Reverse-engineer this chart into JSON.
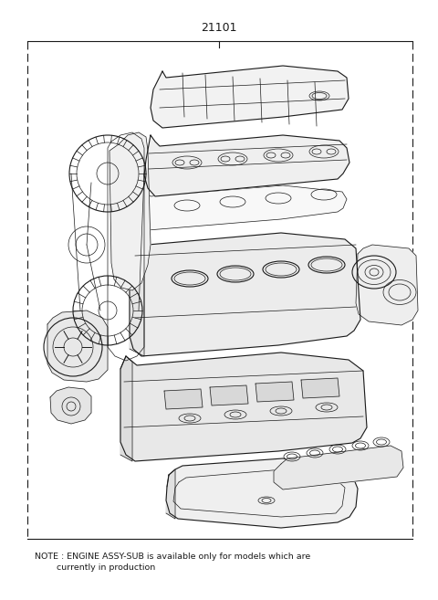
{
  "title_number": "21101",
  "bg_color": "#ffffff",
  "line_color": "#1a1a1a",
  "title_fontsize": 9,
  "note_fontsize": 6.8,
  "border_linewidth": 0.8,
  "fig_width": 4.8,
  "fig_height": 6.57,
  "dpi": 100,
  "note_line1": "NOTE : ENGINE ASSY-SUB is available only for models which are",
  "note_line2": "        currently in production"
}
